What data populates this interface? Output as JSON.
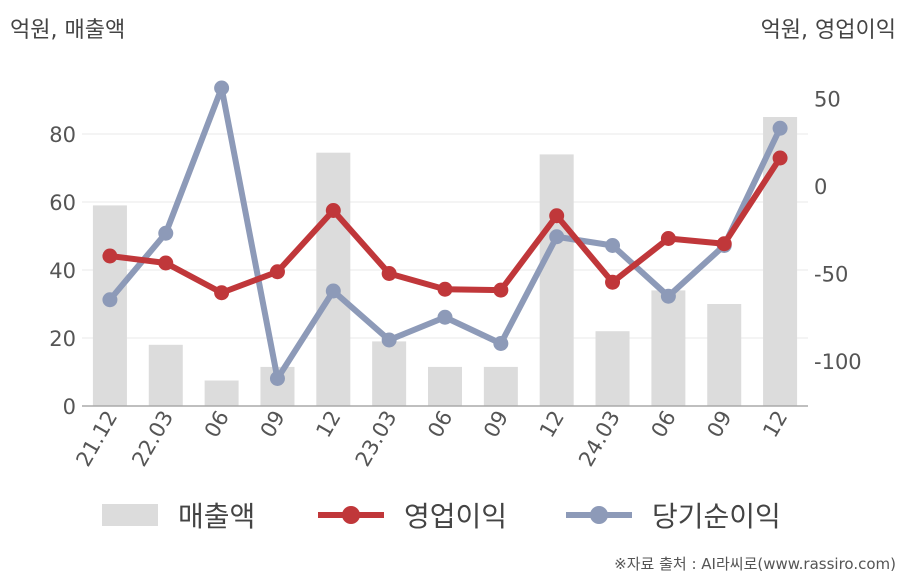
{
  "header": {
    "left_unit": "억원, 매출액",
    "right_unit": "억원, 영업이익"
  },
  "source": "※자료 출처 : AI라씨로(www.rassiro.com)",
  "chart_data": {
    "type": "bar+line",
    "categories": [
      "21.12",
      "22.03",
      "06",
      "09",
      "12",
      "23.03",
      "06",
      "09",
      "12",
      "24.03",
      "06",
      "09",
      "12"
    ],
    "left_axis": {
      "label": "억원, 매출액",
      "ylim": [
        0,
        95
      ],
      "ticks": [
        0,
        20,
        40,
        60,
        80
      ]
    },
    "right_axis": {
      "label": "억원, 영업이익",
      "ylim": [
        -127,
        60
      ],
      "ticks": [
        -100,
        -50,
        0,
        50
      ]
    },
    "grid": true,
    "legend_position": "bottom",
    "series": [
      {
        "name": "매출액",
        "type": "bar",
        "axis": "left",
        "color": "#dcdcdc",
        "values": [
          59,
          18,
          7.5,
          11.5,
          74.5,
          19,
          11.5,
          11.5,
          74,
          22,
          34,
          30,
          85
        ]
      },
      {
        "name": "영업이익",
        "type": "line",
        "axis": "right",
        "color": "#c0373a",
        "values": [
          -40,
          -44,
          -61,
          -49,
          -14,
          -50,
          -59,
          -59.5,
          -17,
          -55,
          -30,
          -33,
          16
        ]
      },
      {
        "name": "당기순이익",
        "type": "line",
        "axis": "right",
        "color": "#8d9ab8",
        "values": [
          -65,
          -27,
          56,
          -110,
          -60,
          -88,
          -75,
          -90,
          -29,
          -34,
          -63,
          -34,
          33
        ]
      }
    ]
  }
}
